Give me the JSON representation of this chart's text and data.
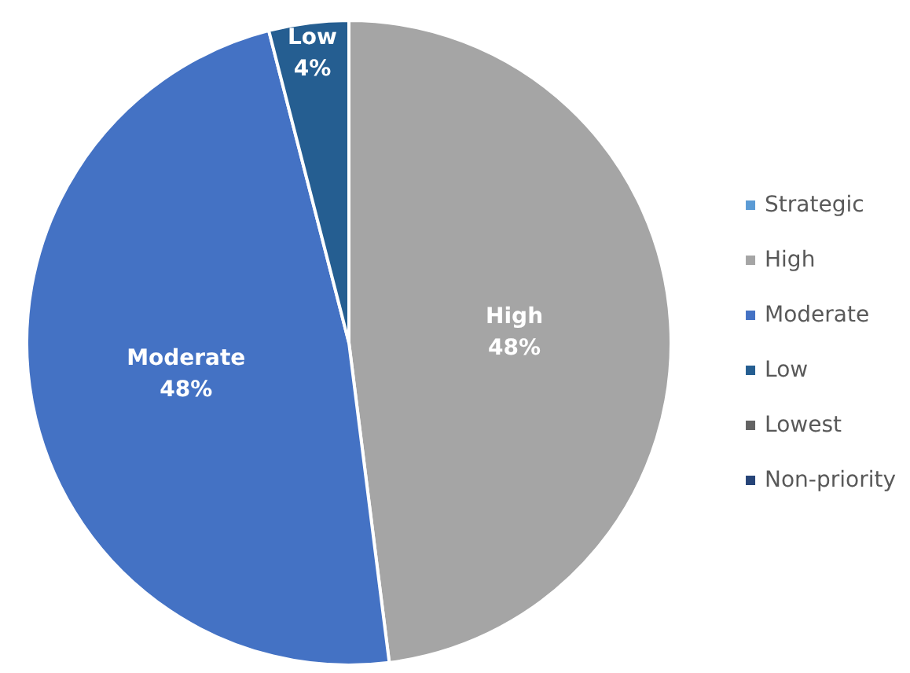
{
  "chart_data": {
    "type": "pie",
    "categories": [
      "Strategic",
      "High",
      "Moderate",
      "Low",
      "Lowest",
      "Non-priority"
    ],
    "values": [
      0,
      48,
      48,
      4,
      0,
      0
    ],
    "colors": [
      "#5b9bd5",
      "#a5a5a5",
      "#4472c4",
      "#255e91",
      "#636363",
      "#264478"
    ],
    "value_labels": [
      null,
      "48%",
      "48%",
      "4%",
      null,
      null
    ],
    "legend": "right"
  }
}
